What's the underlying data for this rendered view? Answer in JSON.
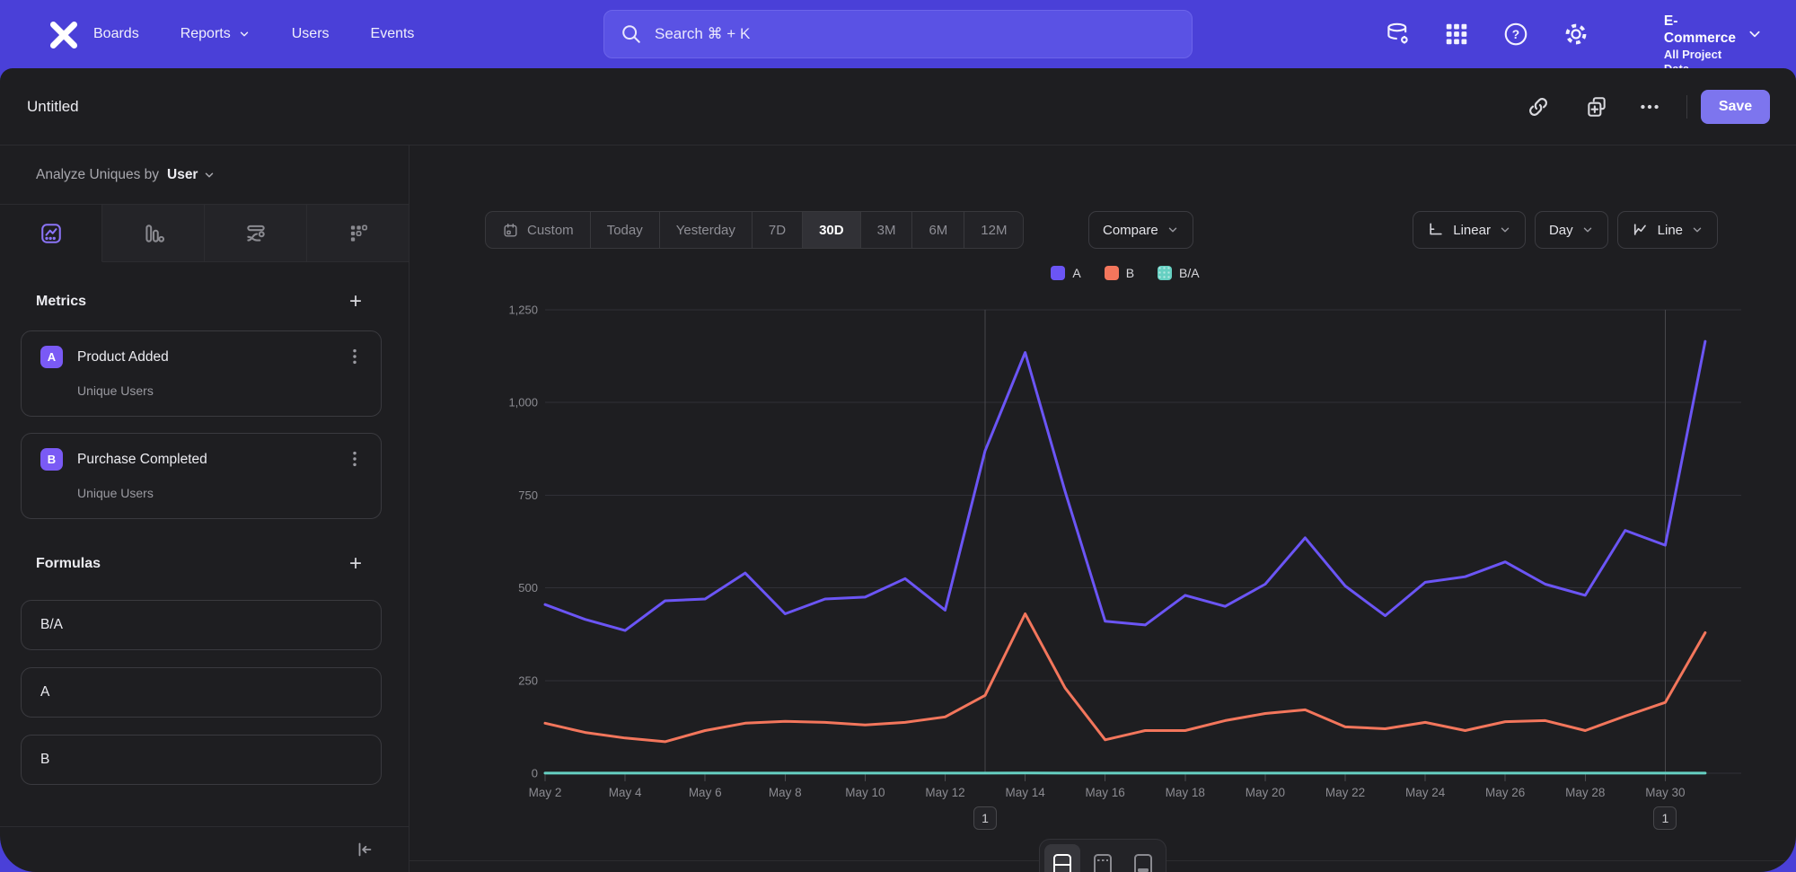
{
  "nav": {
    "brand": "Mixpanel",
    "items": [
      {
        "label": "Boards"
      },
      {
        "label": "Reports"
      },
      {
        "label": "Users"
      },
      {
        "label": "Events"
      }
    ],
    "search": {
      "placeholder": "Search  ⌘ + K"
    },
    "project": {
      "name": "E-Commerce",
      "scope": "All Project Data"
    }
  },
  "report_header": {
    "title": "Untitled",
    "save_label": "Save"
  },
  "sidebar": {
    "analyze": {
      "prefix": "Analyze Uniques by",
      "selector": "User"
    },
    "tabs": [
      {
        "name": "insights",
        "active": true
      },
      {
        "name": "bar",
        "active": false
      },
      {
        "name": "flows",
        "active": false
      },
      {
        "name": "retention",
        "active": false
      }
    ],
    "metrics": {
      "title": "Metrics",
      "add_label": "+",
      "items": [
        {
          "badge": "A",
          "name": "Product Added",
          "subtitle": "Unique Users"
        },
        {
          "badge": "B",
          "name": "Purchase Completed",
          "subtitle": "Unique Users"
        }
      ]
    },
    "formulas": {
      "title": "Formulas",
      "add_label": "+",
      "items": [
        {
          "name": "B/A"
        },
        {
          "name": "A"
        },
        {
          "name": "B"
        }
      ]
    }
  },
  "controls": {
    "date_ranges": [
      "Custom",
      "Today",
      "Yesterday",
      "7D",
      "30D",
      "3M",
      "6M",
      "12M"
    ],
    "active_range": "30D",
    "compare_label": "Compare",
    "scale_label": "Linear",
    "granularity_label": "Day",
    "chart_type_label": "Line"
  },
  "chart_data": {
    "type": "line",
    "title": "",
    "xlabel": "",
    "ylabel": "",
    "ylim": [
      0,
      1250
    ],
    "y_ticks": [
      0,
      250,
      500,
      750,
      1000,
      1250
    ],
    "grid": "horizontal",
    "legend_position": "top-center",
    "x": [
      "May 2",
      "May 3",
      "May 4",
      "May 5",
      "May 6",
      "May 7",
      "May 8",
      "May 9",
      "May 10",
      "May 11",
      "May 12",
      "May 13",
      "May 14",
      "May 15",
      "May 16",
      "May 17",
      "May 18",
      "May 19",
      "May 20",
      "May 21",
      "May 22",
      "May 23",
      "May 24",
      "May 25",
      "May 26",
      "May 27",
      "May 28",
      "May 29",
      "May 30",
      "May 31"
    ],
    "x_ticks_shown_every": 2,
    "series": [
      {
        "name": "A",
        "metric": "Product Added — Unique Users",
        "color": "#6b55f5",
        "values": [
          455,
          415,
          385,
          465,
          470,
          540,
          430,
          470,
          475,
          525,
          440,
          870,
          1135,
          760,
          410,
          400,
          480,
          450,
          510,
          635,
          505,
          425,
          515,
          530,
          570,
          510,
          480,
          655,
          615,
          1165
        ]
      },
      {
        "name": "B",
        "metric": "Purchase Completed — Unique Users",
        "color": "#f3765c",
        "values": [
          135,
          110,
          95,
          85,
          115,
          135,
          140,
          137,
          130,
          137,
          152,
          210,
          430,
          230,
          90,
          115,
          115,
          142,
          161,
          171,
          125,
          120,
          137,
          115,
          139,
          142,
          115,
          154,
          191,
          379
        ]
      },
      {
        "name": "B/A",
        "metric": "Formula B/A",
        "color": "#66d0c2",
        "dotted": true,
        "values": [
          0.3,
          0.27,
          0.25,
          0.18,
          0.24,
          0.25,
          0.33,
          0.29,
          0.27,
          0.26,
          0.35,
          0.24,
          0.38,
          0.3,
          0.22,
          0.29,
          0.24,
          0.32,
          0.32,
          0.27,
          0.25,
          0.28,
          0.27,
          0.22,
          0.24,
          0.28,
          0.24,
          0.24,
          0.31,
          0.33
        ]
      }
    ],
    "annotations": [
      {
        "index": 11,
        "date": "May 13",
        "label": "1"
      },
      {
        "index": 28,
        "date": "May 30",
        "label": "1"
      }
    ]
  },
  "colors": {
    "nav_purple": "#4a40d8",
    "search_field": "#5a52e4",
    "canvas_bg": "#1e1e21",
    "accent_purple": "#7a5af5",
    "save_button": "#7d75ee",
    "series_a": "#6b55f5",
    "series_b": "#f3765c",
    "series_ba": "#66d0c2"
  },
  "icons": {
    "nav": [
      "mixpanel-logo",
      "search-icon",
      "data-management-icon",
      "apps-grid-icon",
      "help-icon",
      "settings-gear-icon",
      "chevron-down-icon"
    ],
    "header": [
      "link-icon",
      "duplicate-icon",
      "ellipsis-icon"
    ],
    "sidebar": [
      "insights-tab-icon",
      "bar-chart-tab-icon",
      "flows-tab-icon",
      "retention-tab-icon",
      "plus-icon",
      "kebab-icon",
      "collapse-sidebar-icon"
    ],
    "controls": [
      "calendar-icon",
      "linear-scale-icon",
      "line-chart-icon"
    ],
    "footer": [
      "layout-split-icon",
      "layout-chart-icon",
      "layout-table-icon"
    ]
  }
}
